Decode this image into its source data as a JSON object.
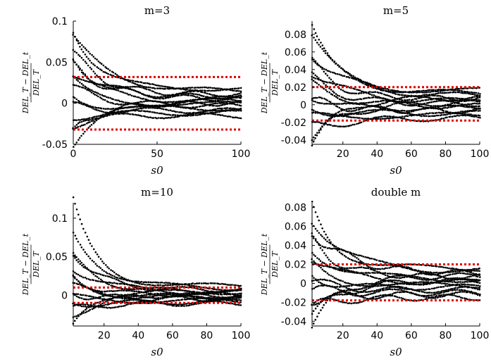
{
  "chart_data": [
    {
      "type": "scatter",
      "title": "m=3",
      "xlabel": "s0",
      "ylabel": "(DEL_T−DEL_t)/DEL_T",
      "xlim": [
        0,
        100
      ],
      "ylim": [
        -0.05,
        0.1
      ],
      "xticks": [
        "0",
        "50",
        "100"
      ],
      "yticks": [
        "-0.05",
        "0",
        "0.05",
        "0.1"
      ],
      "ref_lines": [
        0.032,
        -0.032
      ],
      "series_start": [
        0.093,
        0.078,
        0.062,
        0.052,
        0.045,
        0.036,
        0.028,
        0.018,
        0.008,
        -0.005,
        -0.015,
        -0.025,
        -0.037,
        -0.049
      ],
      "series_end": [
        0.018,
        0.014,
        0.011,
        0.008,
        0.005,
        0.002,
        -0.001,
        -0.003,
        -0.006,
        -0.009,
        -0.012,
        -0.015,
        0.0,
        0.006
      ]
    },
    {
      "type": "scatter",
      "title": "m=5",
      "xlabel": "s0",
      "ylabel": "(DEL_T−DEL_t)/DEL_T",
      "xlim": [
        2,
        100
      ],
      "ylim": [
        -0.045,
        0.095
      ],
      "xticks": [
        "20",
        "40",
        "60",
        "80",
        "100"
      ],
      "yticks": [
        "-0.04",
        "-0.02",
        "0",
        "0.02",
        "0.04",
        "0.06",
        "0.08"
      ],
      "ref_lines": [
        0.02,
        -0.018
      ],
      "series_start": [
        0.09,
        0.075,
        0.058,
        0.048,
        0.038,
        0.03,
        0.022,
        0.012,
        0.004,
        -0.006,
        -0.016,
        -0.026,
        -0.036,
        -0.045
      ],
      "series_end": [
        0.016,
        0.013,
        0.01,
        0.007,
        0.004,
        0.001,
        -0.002,
        -0.004,
        -0.007,
        -0.01,
        -0.012,
        -0.015,
        0.003,
        0.008
      ]
    },
    {
      "type": "scatter",
      "title": "m=10",
      "xlabel": "s0",
      "ylabel": "(DEL_T−DEL_t)/DEL_T",
      "xlim": [
        2,
        100
      ],
      "ylim": [
        -0.04,
        0.12
      ],
      "xticks": [
        "20",
        "40",
        "60",
        "80",
        "100"
      ],
      "yticks": [
        "0",
        "0.05",
        "0.1"
      ],
      "ref_lines": [
        0.01,
        -0.01
      ],
      "series_start": [
        0.12,
        0.078,
        0.058,
        0.048,
        0.038,
        0.028,
        0.018,
        0.01,
        0.003,
        -0.005,
        -0.012,
        -0.02,
        -0.03,
        -0.04
      ],
      "series_end": [
        0.012,
        0.009,
        0.007,
        0.005,
        0.003,
        0.001,
        -0.001,
        -0.003,
        -0.005,
        -0.007,
        -0.009,
        -0.011,
        0.0,
        0.004
      ]
    },
    {
      "type": "scatter",
      "title": "double m",
      "xlabel": "s0",
      "ylabel": "(DEL_T−DEL_t)/DEL_T",
      "xlim": [
        2,
        100
      ],
      "ylim": [
        -0.045,
        0.085
      ],
      "xticks": [
        "20",
        "40",
        "60",
        "80",
        "100"
      ],
      "yticks": [
        "-0.04",
        "-0.02",
        "0",
        "0.02",
        "0.04",
        "0.06",
        "0.08"
      ],
      "ref_lines": [
        0.02,
        -0.018
      ],
      "series_start": [
        0.085,
        0.07,
        0.055,
        0.046,
        0.036,
        0.027,
        0.02,
        0.011,
        0.003,
        -0.007,
        -0.016,
        -0.025,
        -0.034,
        -0.043
      ],
      "series_end": [
        0.016,
        0.013,
        0.01,
        0.007,
        0.004,
        0.001,
        -0.002,
        -0.004,
        -0.007,
        -0.01,
        -0.012,
        -0.015,
        0.003,
        0.008
      ]
    }
  ]
}
